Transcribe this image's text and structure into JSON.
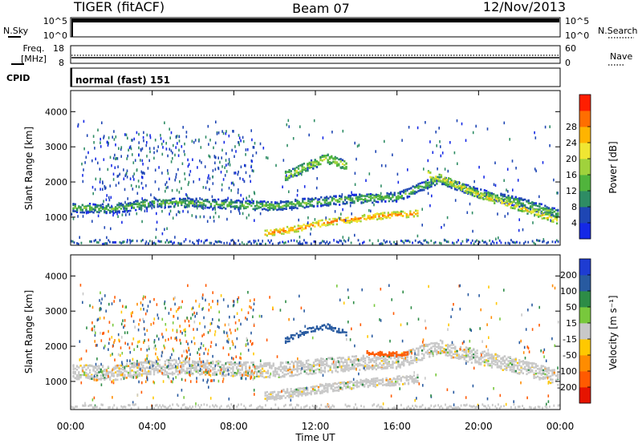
{
  "header": {
    "radar": "TIGER (fitACF)",
    "beam": "Beam 07",
    "date": "12/Nov/2013"
  },
  "panels": {
    "nsky": {
      "label": "N.Sky",
      "ticks": [
        "10^5",
        "10^0"
      ],
      "right_label": "N.Search",
      "right_ticks": [
        "10^5",
        "10^0"
      ]
    },
    "freq": {
      "label_line1": "Freq.",
      "label_line2": "[MHz]",
      "ticks": [
        "18",
        "8"
      ],
      "right_label": "Nave",
      "right_ticks": [
        "60",
        "0"
      ]
    },
    "cpid": {
      "label": "CPID",
      "value": "normal (fast) 151"
    }
  },
  "xaxis": {
    "label": "Time UT",
    "ticks": [
      "00:00",
      "04:00",
      "08:00",
      "12:00",
      "16:00",
      "20:00",
      "00:00"
    ]
  },
  "chart_data": [
    {
      "type": "heatmap",
      "ylabel": "Slant Range [km]",
      "ylim": [
        200,
        4600
      ],
      "yticks": [
        1000,
        2000,
        3000,
        4000
      ],
      "xlim": [
        0,
        24
      ],
      "colorbar": {
        "label": "Power [dB]",
        "ticks": [
          4,
          8,
          12,
          16,
          20,
          24,
          28
        ],
        "colors": [
          "#1428e6",
          "#1e46b4",
          "#2e8c64",
          "#50b43c",
          "#a0d23c",
          "#f0e632",
          "#ffb400",
          "#ff6e00",
          "#ff1e00"
        ]
      },
      "bands": [
        {
          "t": [
            0,
            2,
            4,
            6,
            8,
            10,
            12,
            14,
            16,
            18,
            20,
            22,
            24
          ],
          "r": [
            1300,
            1260,
            1430,
            1440,
            1380,
            1340,
            1460,
            1550,
            1600,
            2100,
            1700,
            1450,
            1100
          ],
          "width": 260,
          "level": 14
        },
        {
          "t": [
            9.5,
            11,
            12.5,
            14,
            15.5,
            17
          ],
          "r": [
            560,
            700,
            880,
            980,
            1080,
            1130
          ],
          "width": 180,
          "level": 26
        },
        {
          "t": [
            10.5,
            11.5,
            12.5,
            13.5
          ],
          "r": [
            2200,
            2450,
            2700,
            2500
          ],
          "width": 260,
          "level": 18
        },
        {
          "t": [
            17.5,
            18.5,
            20,
            22,
            24
          ],
          "r": [
            2250,
            2050,
            1650,
            1300,
            900
          ],
          "width": 200,
          "level": 22
        }
      ]
    },
    {
      "type": "heatmap",
      "ylabel": "Slant Range [km]",
      "ylim": [
        200,
        4600
      ],
      "yticks": [
        1000,
        2000,
        3000,
        4000
      ],
      "xlim": [
        0,
        24
      ],
      "colorbar": {
        "label": "Velocity [m s⁻¹]",
        "ticks": [
          200,
          100,
          50,
          15,
          -15,
          -50,
          -100,
          -200
        ],
        "colors": [
          "#1e3cd2",
          "#285aa0",
          "#2d8c46",
          "#78c83c",
          "#c8c8c8",
          "#ffc800",
          "#ff8c00",
          "#ff5a00",
          "#e61400"
        ]
      },
      "bands": [
        {
          "t": [
            0,
            2,
            4,
            6,
            8,
            10,
            12,
            14,
            16,
            18,
            20,
            22,
            24
          ],
          "r": [
            1300,
            1260,
            1430,
            1440,
            1380,
            1340,
            1460,
            1550,
            1600,
            2000,
            1700,
            1450,
            1100
          ],
          "width": 420,
          "level": 0
        },
        {
          "t": [
            9.5,
            12,
            14,
            16,
            17
          ],
          "r": [
            600,
            800,
            950,
            1050,
            1100
          ],
          "width": 250,
          "level": 0
        },
        {
          "t": [
            10.5,
            11.5,
            12.5,
            13.5
          ],
          "r": [
            2200,
            2450,
            2600,
            2400
          ],
          "width": 150,
          "level": 150
        },
        {
          "t": [
            14.5,
            15.5,
            16.5
          ],
          "r": [
            1850,
            1800,
            1800
          ],
          "width": 120,
          "level": -150
        }
      ]
    }
  ]
}
